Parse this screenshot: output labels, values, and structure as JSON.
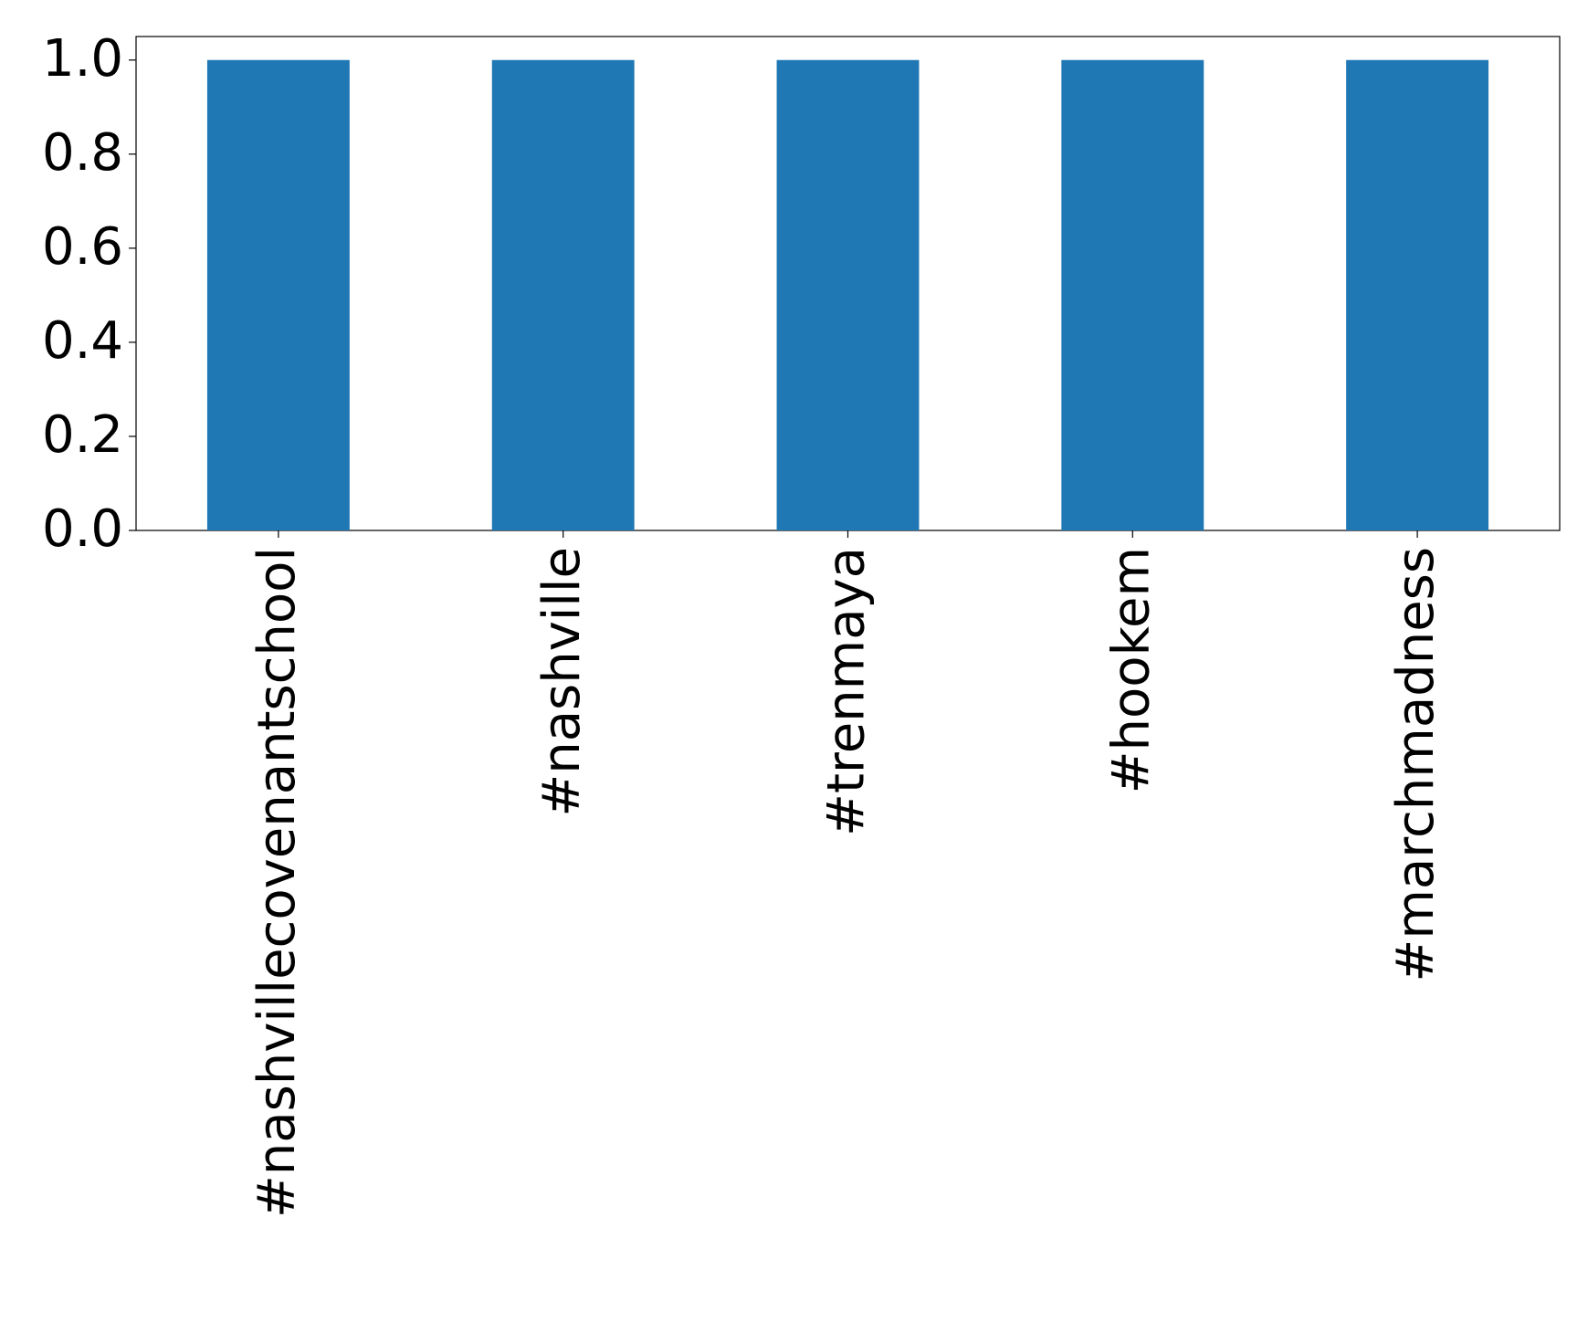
{
  "chart_data": {
    "type": "bar",
    "categories": [
      "#nashvillecovenantschool",
      "#nashville",
      "#trenmaya",
      "#hookem",
      "#marchmadness"
    ],
    "values": [
      1,
      1,
      1,
      1,
      1
    ],
    "color": "#1f77b4",
    "ylim": [
      0,
      1.05
    ],
    "yticks": [
      {
        "value": 0,
        "label": "0.0"
      },
      0.2,
      0.4,
      0.6,
      0.8,
      {
        "value": 1,
        "label": "1.0"
      }
    ],
    "grid": false
  }
}
